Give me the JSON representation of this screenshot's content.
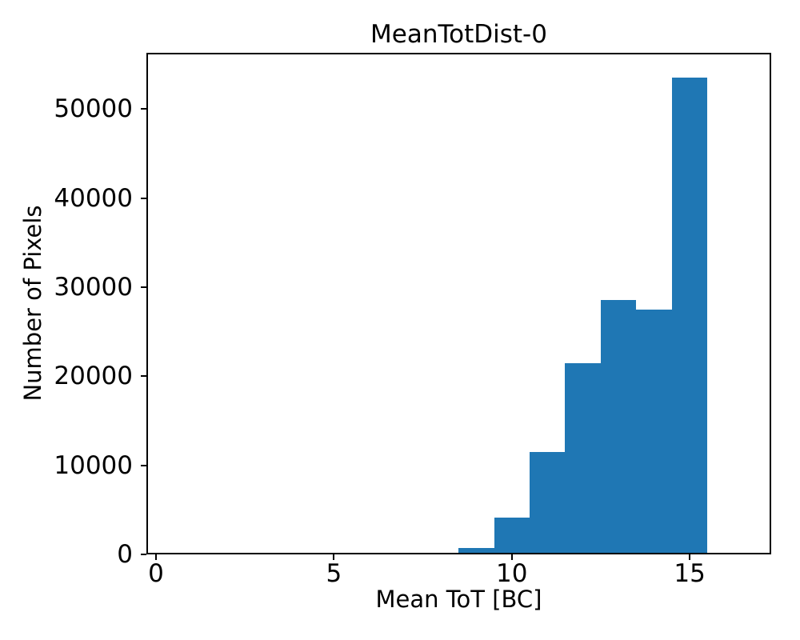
{
  "chart_data": {
    "type": "bar",
    "subtype": "histogram",
    "title": "MeanTotDist-0",
    "xlabel": "Mean ToT [BC]",
    "ylabel": "Number of Pixels",
    "bin_edges": [
      7.5,
      8.5,
      9.5,
      10.5,
      11.5,
      12.5,
      13.5,
      14.5,
      15.5
    ],
    "values": [
      200,
      700,
      4100,
      11500,
      21500,
      28600,
      27500,
      53500
    ],
    "xticks": [
      0,
      5,
      10,
      15
    ],
    "yticks": [
      0,
      10000,
      20000,
      30000,
      40000,
      50000
    ],
    "xlim": [
      -0.27,
      17.29
    ],
    "ylim": [
      0,
      56300
    ],
    "bar_color": "#1f77b4",
    "axis_color": "#000000",
    "background_color": "#ffffff",
    "grid": false,
    "legend": null
  }
}
